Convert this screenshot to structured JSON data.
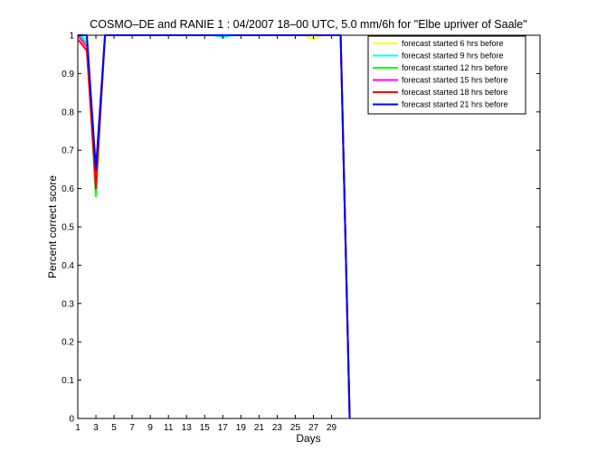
{
  "chart_data": {
    "type": "line",
    "title": "COSMO–DE and RANIE 1 : 04/2007 18–00 UTC, 5.0 mm/6h for \"Elbe upriver of Saale\"",
    "xlabel": "Days",
    "ylabel": "Percent correct score",
    "xlim": [
      1,
      52
    ],
    "ylim": [
      0,
      1
    ],
    "xticks": [
      1,
      3,
      5,
      7,
      9,
      11,
      13,
      15,
      17,
      19,
      21,
      23,
      25,
      27,
      29
    ],
    "xtick_labels": [
      "1",
      "3",
      "5",
      "7",
      "9",
      "11",
      "13",
      "15",
      "17",
      "19",
      "21",
      "23",
      "25",
      "27",
      "29"
    ],
    "yticks": [
      0,
      0.1,
      0.2,
      0.3,
      0.4,
      0.5,
      0.6,
      0.7,
      0.8,
      0.9,
      1
    ],
    "ytick_labels": [
      "0",
      "0.1",
      "0.2",
      "0.3",
      "0.4",
      "0.5",
      "0.6",
      "0.7",
      "0.8",
      "0.9",
      "1"
    ],
    "grid": false,
    "legend_position": "top-right",
    "series": [
      {
        "name": "forecast started 6 hrs before",
        "color": "#ffff00",
        "x": [
          1,
          2,
          3,
          4,
          16,
          17,
          18,
          26,
          27,
          28,
          30,
          31
        ],
        "y": [
          1,
          0.99,
          0.65,
          1,
          1,
          0.995,
          1,
          1,
          0.99,
          1,
          1,
          0
        ]
      },
      {
        "name": "forecast started 9 hrs before",
        "color": "#00ffff",
        "x": [
          1,
          2,
          3,
          4,
          16,
          17,
          18,
          30,
          31
        ],
        "y": [
          1,
          0.99,
          0.63,
          1,
          1,
          0.995,
          1,
          1,
          0
        ]
      },
      {
        "name": "forecast started 12 hrs before",
        "color": "#00ff00",
        "x": [
          1,
          2,
          3,
          4,
          30,
          31
        ],
        "y": [
          1,
          0.98,
          0.58,
          1,
          1,
          0
        ]
      },
      {
        "name": "forecast started 15 hrs before",
        "color": "#ff00ff",
        "x": [
          1,
          2,
          3,
          4,
          30,
          31
        ],
        "y": [
          1,
          0.97,
          0.62,
          1,
          1,
          0
        ]
      },
      {
        "name": "forecast started 18 hrs before",
        "color": "#ff0000",
        "x": [
          1,
          2,
          3,
          4,
          30,
          31
        ],
        "y": [
          0.99,
          0.96,
          0.6,
          1,
          1,
          0
        ]
      },
      {
        "name": "forecast started 21 hrs before",
        "color": "#0000ff",
        "x": [
          1,
          2,
          3,
          4,
          30,
          31
        ],
        "y": [
          1,
          1,
          0.65,
          1,
          1,
          0
        ]
      }
    ]
  }
}
